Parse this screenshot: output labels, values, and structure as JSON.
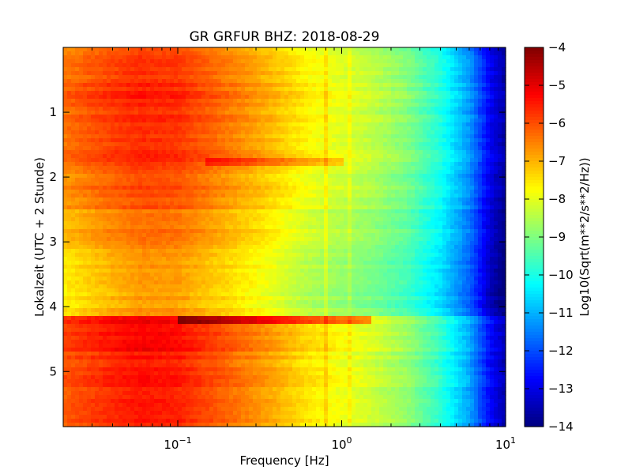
{
  "chart_data": {
    "type": "heatmap",
    "title": "GR GRFUR BHZ: 2018-08-29",
    "xlabel": "Frequency [Hz]",
    "ylabel": "Lokalzeit (UTC + 2 Stunde)",
    "x_scale": "log",
    "xlim": [
      0.02,
      10
    ],
    "ylim": [
      5.85,
      0
    ],
    "x_ticks": [
      {
        "value": 0.1,
        "base": "10",
        "exp": "−1"
      },
      {
        "value": 1,
        "base": "10",
        "exp": "0"
      },
      {
        "value": 10,
        "base": "10",
        "exp": "1"
      }
    ],
    "y_ticks": [
      {
        "value": 1,
        "label": "1"
      },
      {
        "value": 2,
        "label": "2"
      },
      {
        "value": 3,
        "label": "3"
      },
      {
        "value": 4,
        "label": "4"
      },
      {
        "value": 5,
        "label": "5"
      }
    ],
    "colorbar": {
      "label": "Log10(Sqrt(m**2/s**2/Hz))",
      "colormap": "jet",
      "range": [
        -14,
        -4
      ],
      "tick_values": [
        -4,
        -5,
        -6,
        -7,
        -8,
        -9,
        -10,
        -11,
        -12,
        -13,
        -14
      ],
      "tick_labels": [
        "−4",
        "−5",
        "−6",
        "−7",
        "−8",
        "−9",
        "−10",
        "−11",
        "−12",
        "−13",
        "−14"
      ]
    },
    "spectrum_profile": {
      "frequency_hz": [
        0.02,
        0.04,
        0.06,
        0.1,
        0.15,
        0.25,
        0.4,
        0.6,
        1.0,
        1.5,
        2.5,
        4.0,
        6.0,
        8.0,
        10.0
      ],
      "log10_level": [
        -6.3,
        -5.8,
        -5.6,
        -5.7,
        -6.1,
        -6.6,
        -7.1,
        -7.6,
        -8.0,
        -8.3,
        -8.9,
        -9.9,
        -11.2,
        -12.8,
        -13.6
      ]
    },
    "time_segments": [
      {
        "t_start": 0.0,
        "t_end": 0.5,
        "offset": -0.2
      },
      {
        "t_start": 0.5,
        "t_end": 1.0,
        "offset": 0.1
      },
      {
        "t_start": 1.0,
        "t_end": 1.8,
        "offset": 0.0
      },
      {
        "t_start": 1.8,
        "t_end": 2.5,
        "offset": -0.4
      },
      {
        "t_start": 2.5,
        "t_end": 3.1,
        "offset": -0.8
      },
      {
        "t_start": 3.1,
        "t_end": 4.15,
        "offset": -1.3
      },
      {
        "t_start": 4.15,
        "t_end": 4.7,
        "offset": 0.5
      },
      {
        "t_start": 4.7,
        "t_end": 5.85,
        "offset": 0.2
      }
    ],
    "features": [
      {
        "type": "horizontal_band",
        "t": 1.78,
        "freq_range": [
          0.15,
          1.0
        ],
        "boost": 0.8
      },
      {
        "type": "horizontal_band",
        "t": 4.2,
        "freq_range": [
          0.1,
          1.5
        ],
        "boost": 1.3
      },
      {
        "type": "vertical_line",
        "f": 0.8,
        "boost": 0.4
      },
      {
        "type": "vertical_line",
        "f": 1.1,
        "boost": 0.3
      }
    ]
  }
}
